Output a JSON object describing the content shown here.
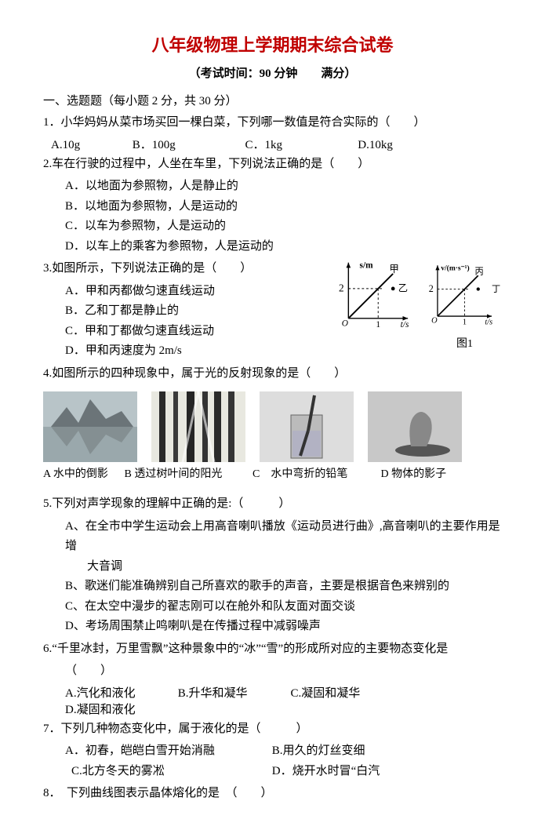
{
  "title_main": "八年级物理上学期期末综合试卷",
  "title_color": "#c00000",
  "subtitle": "（考试时间：90 分钟　　满分）",
  "section1": "一、选题题（每小题 2 分，共 30 分）",
  "q1": {
    "text": "1．小华妈妈从菜市场买回一棵白菜，下列哪一数值是符合实际的（　　）",
    "a": "A.10g",
    "b": "B．100g",
    "c": "C．1kg",
    "d": "D.10kg",
    "wa": 100,
    "wb": 140,
    "wc": 140,
    "wd": 100
  },
  "q2": {
    "text": "2.车在行驶的过程中，人坐在车里，下列说法正确的是（　　）",
    "a": "A．以地面为参照物，人是静止的",
    "b": "B．以地面为参照物，人是运动的",
    "c": "C．以车为参照物，人是运动的",
    "d": "D．以车上的乘客为参照物，人是运动的"
  },
  "q3": {
    "text": "3.如图所示，下列说法正确的是（　　）",
    "a": "A．甲和丙都做匀速直线运动",
    "b": "B．乙和丁都是静止的",
    "c": "C．甲和丁都做匀速直线运动",
    "d": "D．甲和丙速度为 2m/s",
    "fig_caption": "图1",
    "chart_left": {
      "ylabel": "s/m",
      "xlabel": "t/s",
      "xtick": "1",
      "ytick": "2",
      "line1_label": "甲",
      "point_label": "乙"
    },
    "chart_right": {
      "ylabel": "v/(m·s⁻¹)",
      "xlabel": "t/s",
      "xtick": "1",
      "ytick": "2",
      "line1_label": "丙",
      "point_label": "丁"
    }
  },
  "q4": {
    "text": "4.如图所示的四种现象中，属于光的反射现象的是（　　）",
    "caps": {
      "a": "A 水中的倒影",
      "b": "B 透过树叶间的阳光",
      "c": "C　水中弯折的铅笔",
      "d": "D 物体的影子"
    },
    "cap_widths": {
      "a": 100,
      "b": 160,
      "c": 160,
      "d": 110
    }
  },
  "q5": {
    "text": "5.下列对声学现象的理解中正确的是:（　　　）",
    "a1": "A、在全市中学生运动会上用高音喇叭播放《运动员进行曲》,高音喇叭的主要作用是增",
    "a2": "大音调",
    "b": "B、歌迷们能准确辨别自己所喜欢的歌手的声音，主要是根据音色来辨别的",
    "c": "C、在太空中漫步的翟志刚可以在舱外和队友面对面交谈",
    "d": "D、考场周围禁止鸣喇叭是在传播过程中减弱噪声"
  },
  "q6": {
    "text1": "6.“千里冰封，万里雪飘”这种景象中的“冰”“雪”的形成所对应的主要物态变化是",
    "text2": "（　　）",
    "a": "A.汽化和液化",
    "b": "B.升华和凝华",
    "c": "C.凝固和凝华",
    "d": "D.凝固和液化",
    "wa": 140,
    "wb": 140,
    "wc": 140,
    "wd": 130
  },
  "q7": {
    "text": "7．下列几种物态变化中，属于液化的是（　　　）",
    "a": "A．初春，皑皑白雪开始消融",
    "b": "B.用久的灯丝变细",
    "c": "C.北方冬天的雾凇",
    "d": "D．烧开水时冒“白汽"
  },
  "q8": {
    "text": "8．　下列曲线图表示晶体熔化的是　（　　）"
  },
  "svg_colors": {
    "axis": "#000000",
    "line": "#000000",
    "dash": "#000000"
  }
}
